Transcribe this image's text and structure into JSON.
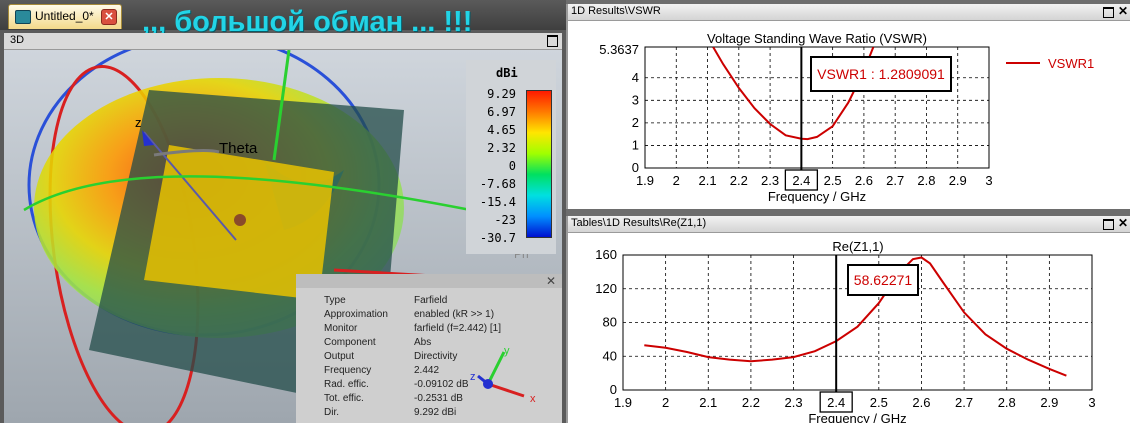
{
  "left_window": {
    "tab_label": "Untitled_0*",
    "headline": ",,, большой обман ... !!!",
    "view_label": "3D",
    "axis_z_label": "z",
    "theta_label": "Theta",
    "phi_label": "Ph",
    "colorbar": {
      "unit": "dBi",
      "ticks": [
        "9.29",
        "6.97",
        "4.65",
        "2.32",
        "0",
        "-7.68",
        "-15.4",
        "-23",
        "-30.7"
      ]
    },
    "info_panel": {
      "rows": [
        {
          "key": "Type",
          "value": "Farfield"
        },
        {
          "key": "Approximation",
          "value": "enabled (kR >> 1)"
        },
        {
          "key": "Monitor",
          "value": "farfield (f=2.442) [1]"
        },
        {
          "key": "Component",
          "value": "Abs"
        },
        {
          "key": "Output",
          "value": "Directivity"
        },
        {
          "key": "Frequency",
          "value": "2.442"
        },
        {
          "key": "Rad. effic.",
          "value": "-0.09102 dB"
        },
        {
          "key": "Tot. effic.",
          "value": "-0.2531 dB"
        },
        {
          "key": "Dir.",
          "value": "9.292 dBi"
        }
      ],
      "triad": {
        "x": "x",
        "y": "y",
        "z": "z"
      }
    }
  },
  "vswr_panel": {
    "title_bar": "1D Results\\VSWR",
    "marker_label": "VSWR1 : 1.2809091",
    "top_value": "5.3637",
    "legend_label": "VSWR1",
    "cursor_label": "2.4"
  },
  "z11_panel": {
    "title_bar": "Tables\\1D Results\\Re(Z1,1)",
    "marker_label": "58.62271",
    "cursor_label": "2.4"
  },
  "colors": {
    "curve": "#cc0000",
    "cyan_text": "#22d4e6"
  },
  "chart_data": [
    {
      "type": "line",
      "title": "Voltage Standing Wave Ratio (VSWR)",
      "xlabel": "Frequency / GHz",
      "ylabel": "",
      "xlim": [
        1.9,
        3.0
      ],
      "ylim": [
        0,
        5.3637
      ],
      "xticks": [
        "1.9",
        "2",
        "2.1",
        "2.2",
        "2.3",
        "2.4",
        "2.5",
        "2.6",
        "2.7",
        "2.8",
        "2.9",
        "3"
      ],
      "yticks": [
        "0",
        "1",
        "2",
        "3",
        "4"
      ],
      "grid": true,
      "legend_position": "top-right",
      "cursor_x": 2.4,
      "series": [
        {
          "name": "VSWR1",
          "x": [
            2.118,
            2.15,
            2.2,
            2.25,
            2.3,
            2.35,
            2.4,
            2.42,
            2.45,
            2.5,
            2.55,
            2.6,
            2.63
          ],
          "y": [
            5.36,
            4.6,
            3.55,
            2.65,
            1.95,
            1.45,
            1.3,
            1.28,
            1.38,
            1.85,
            2.9,
            4.3,
            5.36
          ]
        }
      ]
    },
    {
      "type": "line",
      "title": "Re(Z1,1)",
      "xlabel": "Frequency / GHz",
      "ylabel": "",
      "xlim": [
        1.9,
        3.0
      ],
      "ylim": [
        0,
        160
      ],
      "xticks": [
        "1.9",
        "2",
        "2.1",
        "2.2",
        "2.3",
        "2.4",
        "2.5",
        "2.6",
        "2.7",
        "2.8",
        "2.9",
        "3"
      ],
      "yticks": [
        "0",
        "40",
        "80",
        "120",
        "160"
      ],
      "grid": true,
      "cursor_x": 2.4,
      "series": [
        {
          "x": [
            1.95,
            2.0,
            2.05,
            2.1,
            2.15,
            2.2,
            2.25,
            2.3,
            2.35,
            2.4,
            2.45,
            2.5,
            2.55,
            2.58,
            2.6,
            2.62,
            2.65,
            2.7,
            2.75,
            2.8,
            2.85,
            2.9,
            2.94
          ],
          "y": [
            53,
            50,
            45,
            39,
            36,
            34,
            36,
            39,
            46,
            58,
            75,
            103,
            140,
            155,
            157,
            150,
            128,
            92,
            66,
            49,
            36,
            25,
            17
          ]
        }
      ]
    }
  ]
}
